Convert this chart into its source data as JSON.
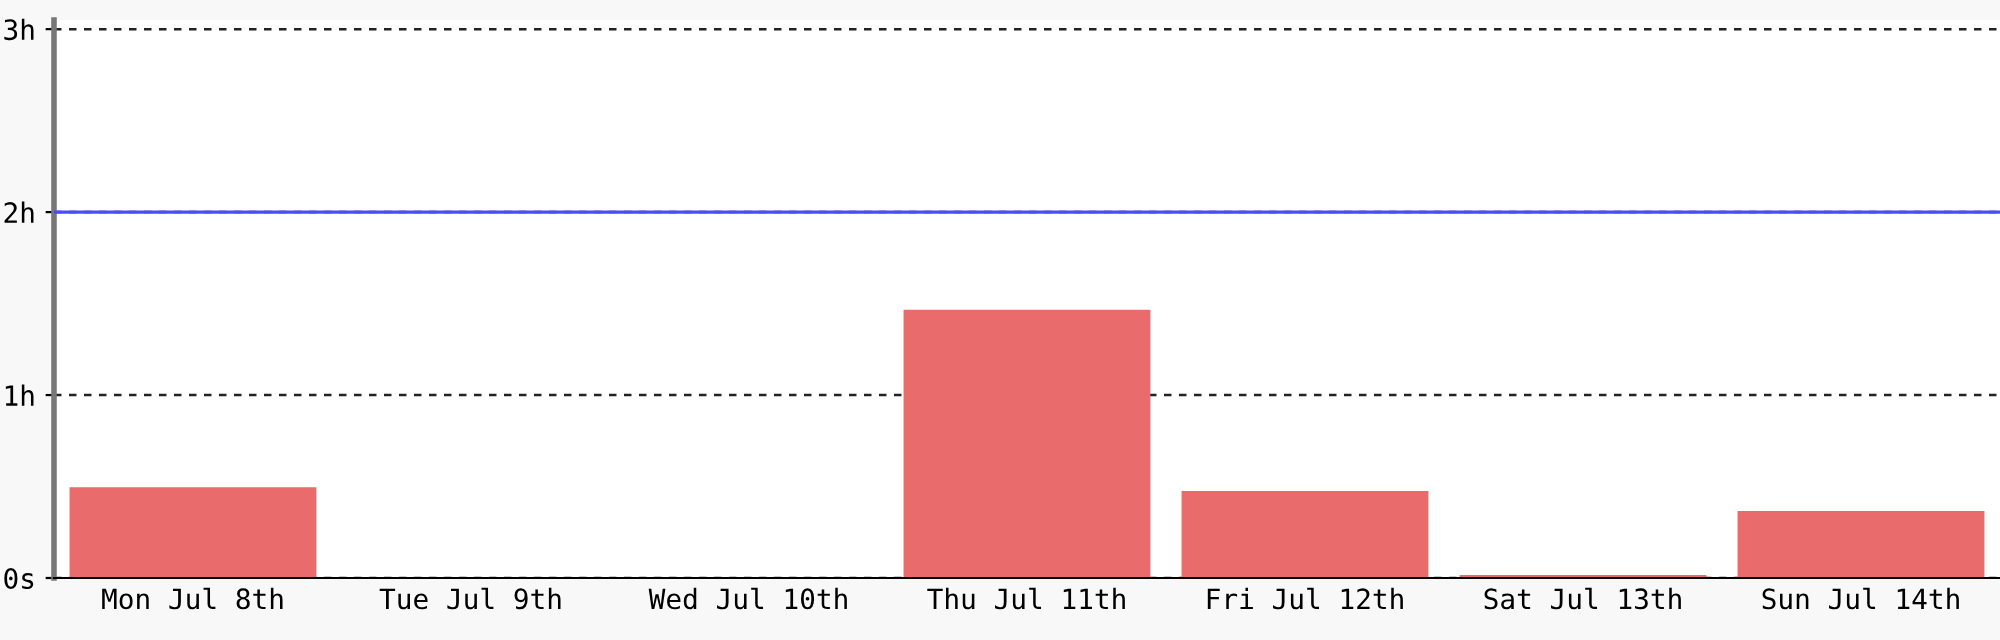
{
  "chart_data": {
    "type": "bar",
    "categories": [
      "Mon Jul 8th",
      "Tue Jul 9th",
      "Wed Jul 10th",
      "Thu Jul 11th",
      "Fri Jul 12th",
      "Sat Jul 13th",
      "Sun Jul 14th"
    ],
    "values": [
      0.49,
      0,
      0,
      1.46,
      0.47,
      0.01,
      0.36
    ],
    "color": "#e96b6b",
    "ylim": [
      0,
      3.05
    ],
    "yticks": [
      {
        "value": 0,
        "label": "0s"
      },
      {
        "value": 1,
        "label": "1h"
      },
      {
        "value": 2,
        "label": "2h"
      },
      {
        "value": 3,
        "label": "3h"
      }
    ],
    "grid": "y",
    "ref_lines": [
      {
        "axis": "y",
        "value": 2,
        "label": null,
        "color": "#4a4aff",
        "line_style": "solid"
      }
    ]
  }
}
